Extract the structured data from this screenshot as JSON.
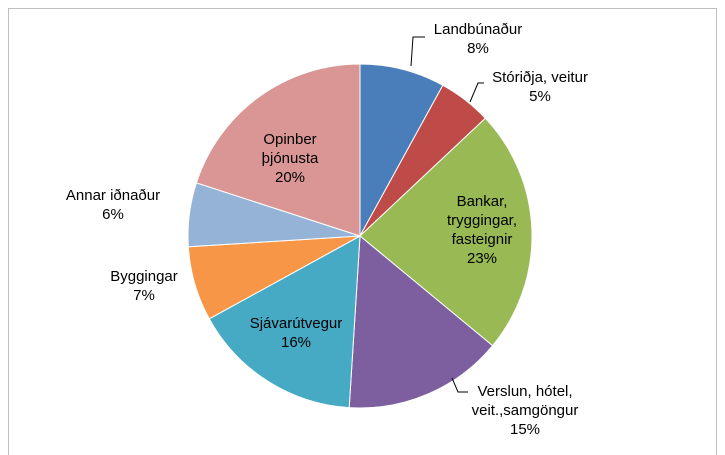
{
  "chart_data": {
    "type": "pie",
    "categories": [
      "Landbúnaður",
      "Stóriðja, veitur",
      "Bankar, tryggingar, fasteignir",
      "Verslun, hótel, veit.,samgöngur",
      "Sjávarútvegur",
      "Byggingar",
      "Annar iðnaður",
      "Opinber þjónusta"
    ],
    "values": [
      8,
      5,
      23,
      15,
      16,
      7,
      6,
      20
    ],
    "value_labels": [
      "8%",
      "5%",
      "23%",
      "15%",
      "16%",
      "7%",
      "6%",
      "20%"
    ],
    "colors": [
      "#4a7ebb",
      "#be4b48",
      "#98b954",
      "#7d5fa0",
      "#46aac5",
      "#f79646",
      "#95b3d7",
      "#d99694"
    ]
  }
}
